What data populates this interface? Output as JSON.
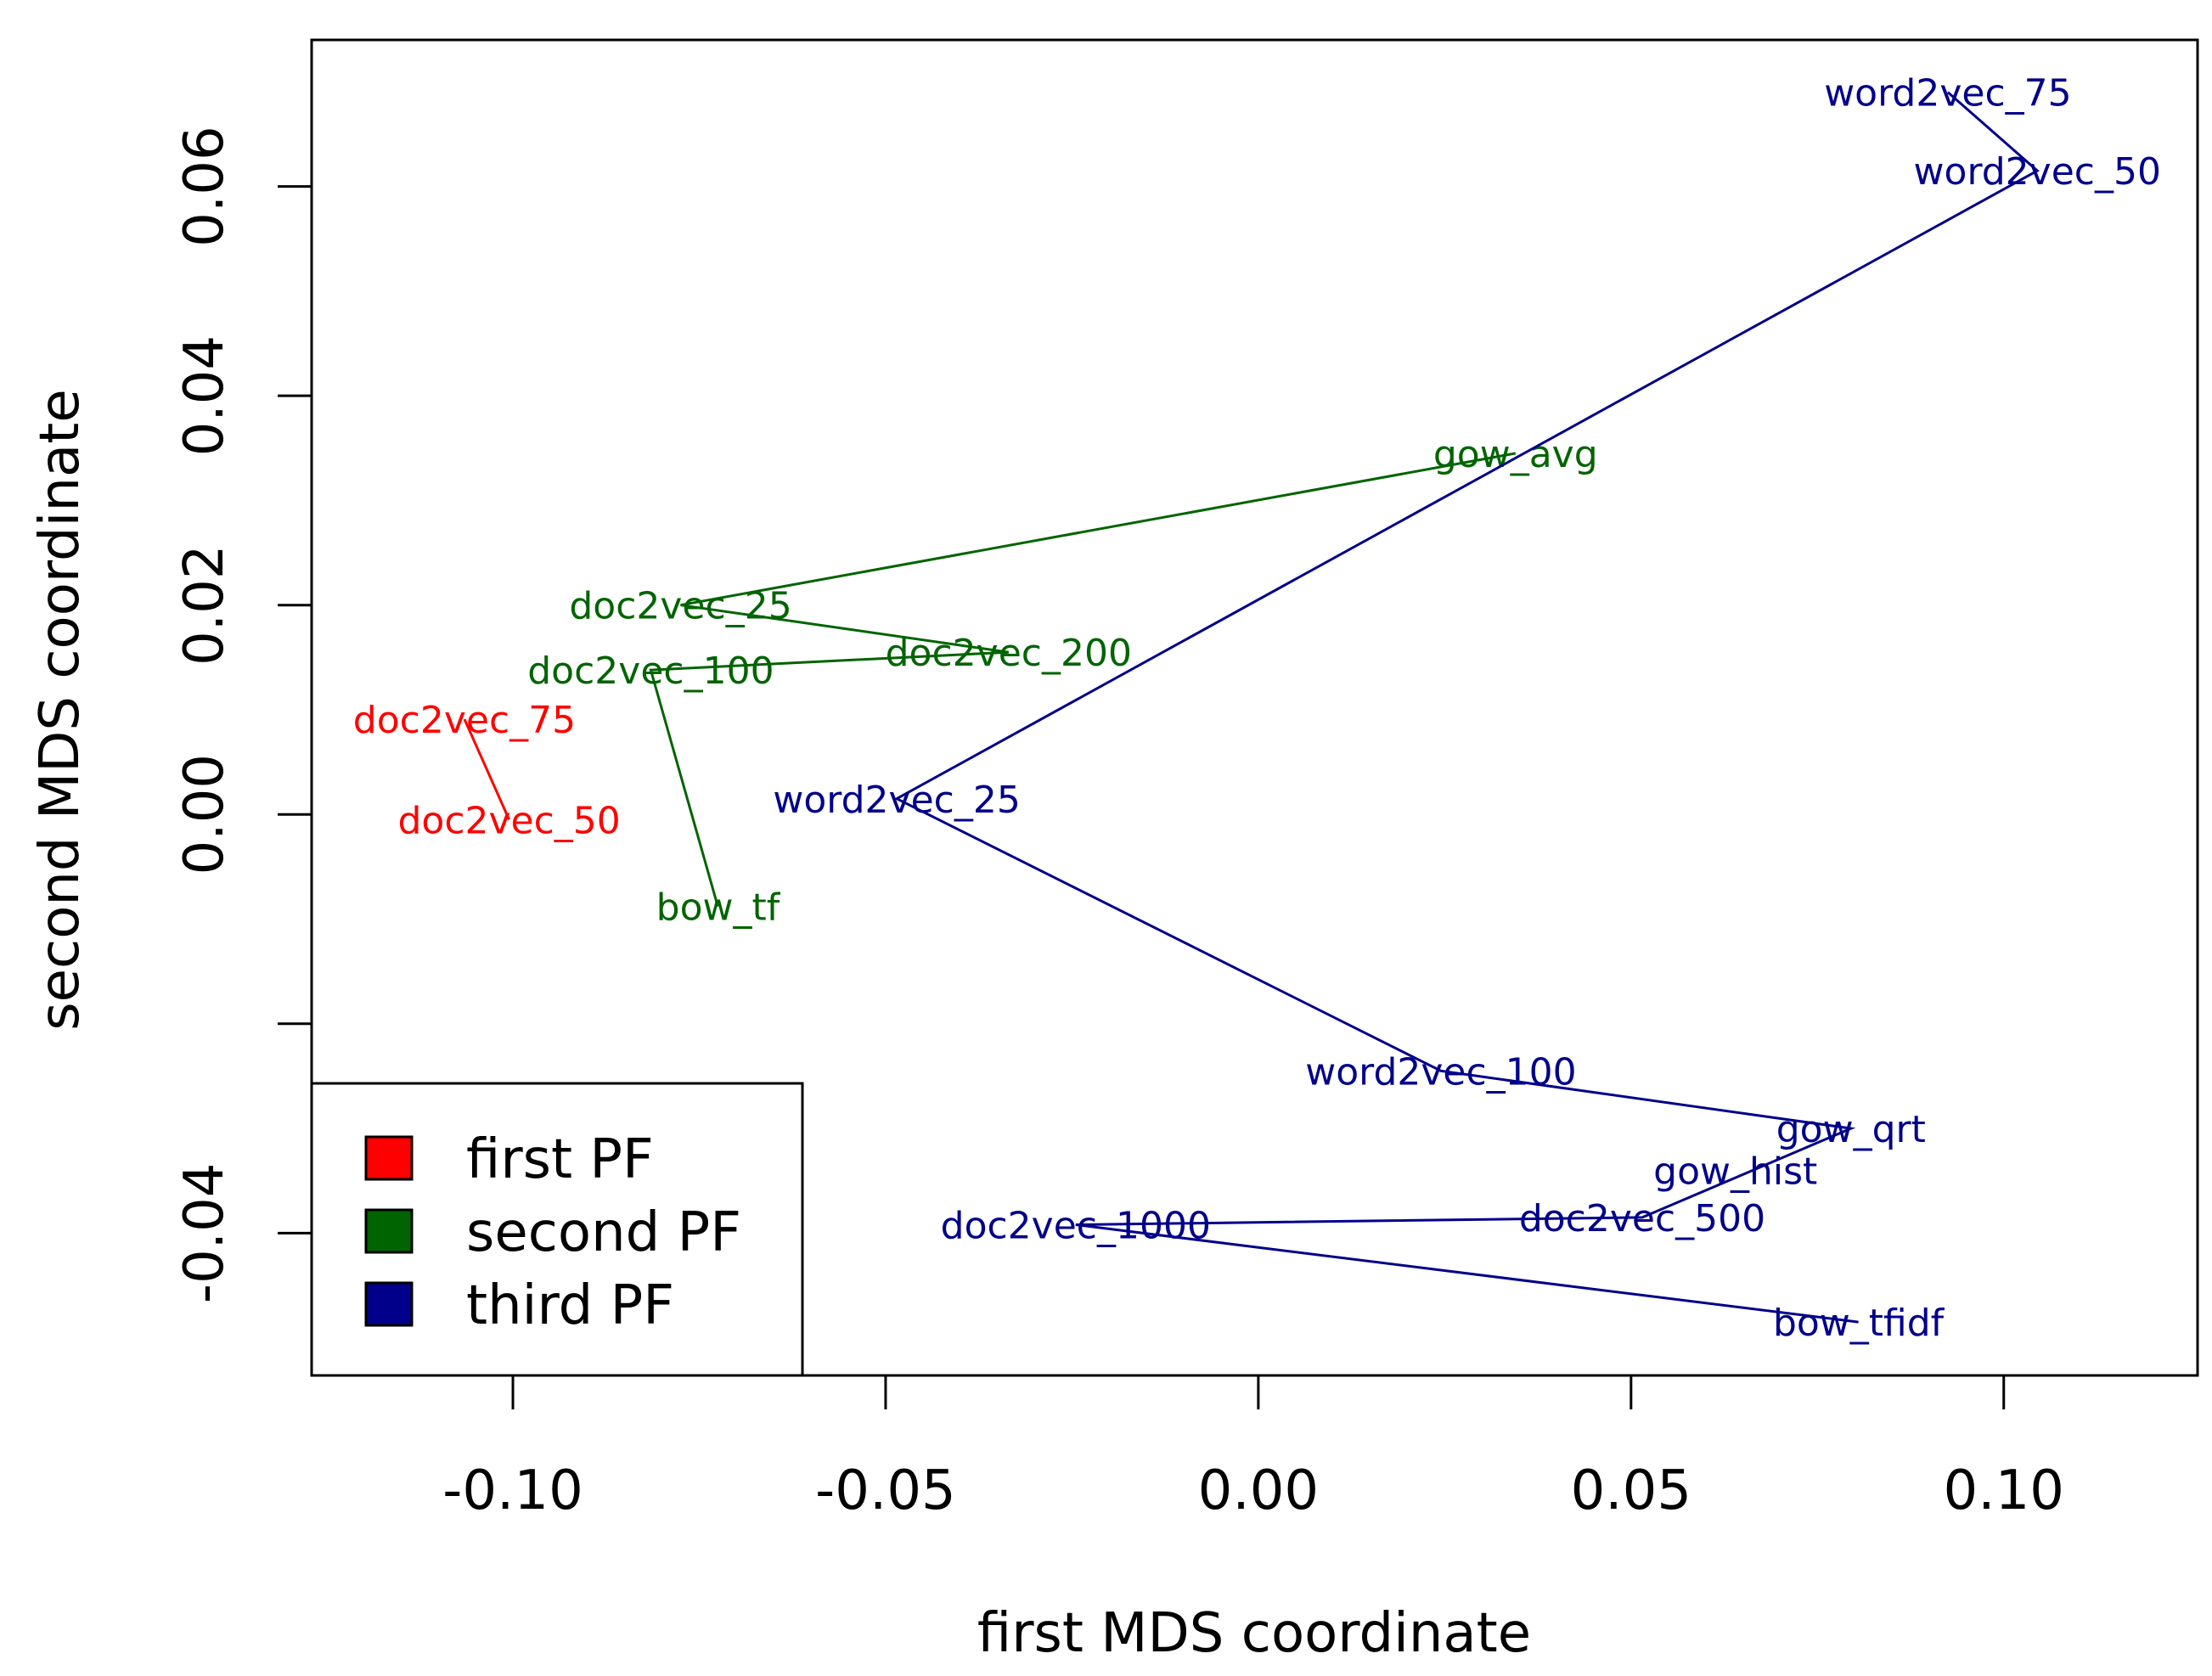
{
  "chart_data": {
    "type": "scatter",
    "xlabel": "first MDS coordinate",
    "ylabel": "second MDS coordinate",
    "xlim": [
      -0.127,
      0.126
    ],
    "ylim": [
      -0.0536,
      0.074
    ],
    "x_ticks": [
      {
        "value": -0.1,
        "label": "-0.10"
      },
      {
        "value": -0.05,
        "label": "-0.05"
      },
      {
        "value": 0.0,
        "label": "0.00"
      },
      {
        "value": 0.05,
        "label": "0.05"
      },
      {
        "value": 0.1,
        "label": "0.10"
      }
    ],
    "y_ticks": [
      {
        "value": -0.04,
        "label": "-0.04"
      },
      {
        "value": -0.02,
        "label": ""
      },
      {
        "value": 0.0,
        "label": "0.00"
      },
      {
        "value": 0.02,
        "label": "0.02"
      },
      {
        "value": 0.04,
        "label": "0.04"
      },
      {
        "value": 0.06,
        "label": "0.06"
      }
    ],
    "series": [
      {
        "name": "first PF",
        "color": "#ff0000",
        "points": [
          {
            "label": "doc2vec_75",
            "x": -0.1065,
            "y": 0.0091
          },
          {
            "label": "doc2vec_50",
            "x": -0.1005,
            "y": -0.0005
          }
        ],
        "path": [
          "doc2vec_75",
          "doc2vec_50"
        ]
      },
      {
        "name": "second PF",
        "color": "#006400",
        "points": [
          {
            "label": "gow_avg",
            "x": 0.0345,
            "y": 0.0345
          },
          {
            "label": "doc2vec_25",
            "x": -0.0775,
            "y": 0.02
          },
          {
            "label": "doc2vec_200",
            "x": -0.0335,
            "y": 0.0155
          },
          {
            "label": "doc2vec_100",
            "x": -0.0815,
            "y": 0.0138
          },
          {
            "label": "bow_tf",
            "x": -0.0725,
            "y": -0.0088
          }
        ],
        "path": [
          "gow_avg",
          "doc2vec_25",
          "doc2vec_200",
          "doc2vec_100",
          "bow_tf"
        ]
      },
      {
        "name": "third PF",
        "color": "#00008b",
        "points": [
          {
            "label": "word2vec_75",
            "x": 0.0925,
            "y": 0.069
          },
          {
            "label": "word2vec_50",
            "x": 0.1045,
            "y": 0.0615
          },
          {
            "label": "word2vec_25",
            "x": -0.0485,
            "y": 0.0015
          },
          {
            "label": "word2vec_100",
            "x": 0.0245,
            "y": -0.0245
          },
          {
            "label": "gow_qrt",
            "x": 0.0795,
            "y": -0.03
          },
          {
            "label": "gow_hist",
            "x": 0.064,
            "y": -0.034
          },
          {
            "label": "doc2vec_500",
            "x": 0.0515,
            "y": -0.0385
          },
          {
            "label": "doc2vec_1000",
            "x": -0.0245,
            "y": -0.0392
          },
          {
            "label": "bow_tfidf",
            "x": 0.0805,
            "y": -0.0485
          }
        ],
        "path": [
          "word2vec_75",
          "word2vec_50",
          "word2vec_25",
          "word2vec_100",
          "gow_qrt",
          "doc2vec_500",
          "doc2vec_1000",
          "bow_tfidf"
        ]
      }
    ],
    "legend": {
      "position": "bottom-left",
      "entries": [
        {
          "label": "first PF",
          "color": "#ff0000"
        },
        {
          "label": "second PF",
          "color": "#006400"
        },
        {
          "label": "third PF",
          "color": "#00008b"
        }
      ]
    }
  }
}
